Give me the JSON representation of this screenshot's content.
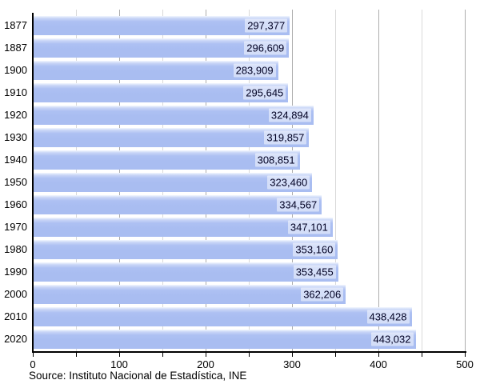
{
  "chart_data": {
    "type": "bar",
    "orientation": "horizontal",
    "title": "",
    "xlabel": "",
    "ylabel": "",
    "categories": [
      "1877",
      "1887",
      "1900",
      "1910",
      "1920",
      "1930",
      "1940",
      "1950",
      "1960",
      "1970",
      "1980",
      "1990",
      "2000",
      "2010",
      "2020"
    ],
    "values": [
      297377,
      296609,
      283909,
      295645,
      324894,
      319857,
      308851,
      323460,
      334567,
      347101,
      353160,
      353455,
      362206,
      438428,
      443032
    ],
    "value_labels": [
      "297,377",
      "296,609",
      "283,909",
      "295,645",
      "324,894",
      "319,857",
      "308,851",
      "323,460",
      "334,567",
      "347,101",
      "353,160",
      "353,455",
      "362,206",
      "438,428",
      "443,032"
    ],
    "axis": {
      "xmin": 0,
      "xmax": 500,
      "major_step": 100,
      "minor_step": 50,
      "tick_labels": [
        "0",
        "100",
        "200",
        "300",
        "400",
        "500"
      ],
      "value_divisor": 1000,
      "grid": true
    },
    "legend": null
  },
  "source_note": "Source: Instituto Nacional de Estadística, INE",
  "colors": {
    "bar_main": "#a9bdf1",
    "bar_top": "#f2f6fe",
    "label_chip_bg": "rgba(255,255,255,0.5)",
    "grid_major": "#adadad",
    "grid_minor": "#d9d9d9",
    "axis": "#000000",
    "text": "#000000",
    "background": "#ffffff"
  }
}
